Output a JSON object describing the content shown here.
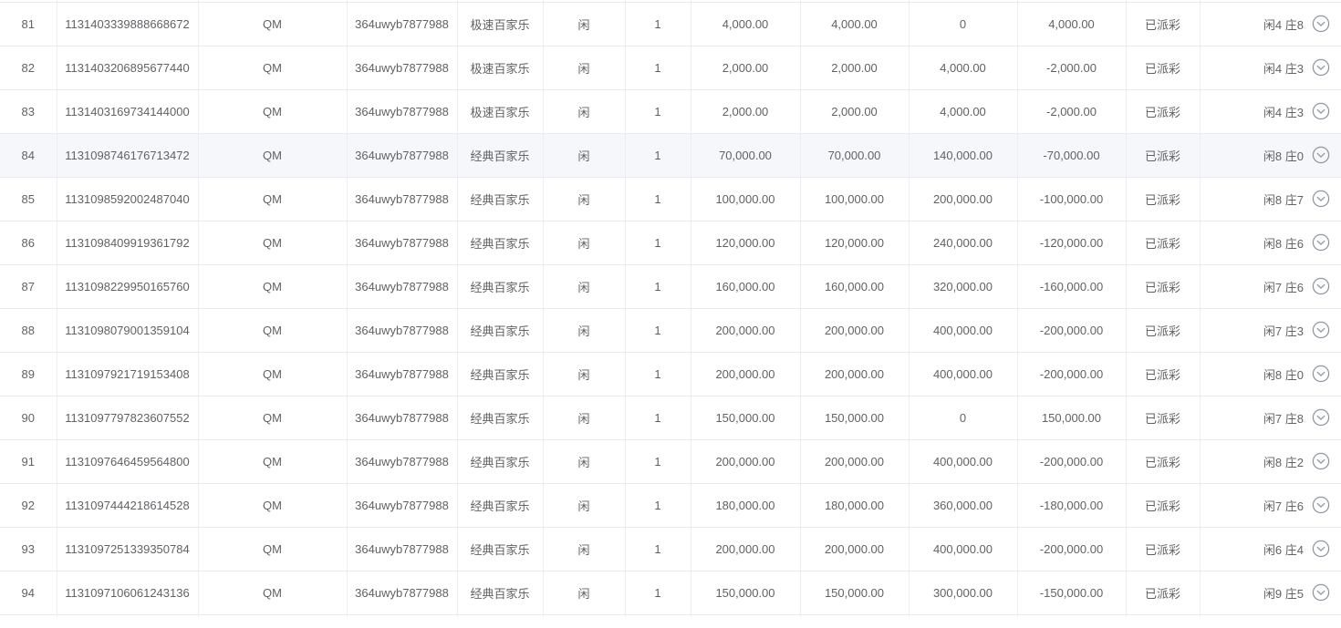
{
  "colors": {
    "text": "#606266",
    "positive": "#12a02c",
    "negative": "#fb2b2b",
    "border": "#e9ebf0",
    "highlight_row_bg": "#f5f7fa"
  },
  "icons": {
    "row_expand": "chevron-down-circle"
  },
  "table": {
    "rows": [
      {
        "num": "81",
        "order_id": "1131403339888668672",
        "agent": "QM",
        "account": "364uwyb7877988",
        "game": "极速百家乐",
        "bet": "闲",
        "count": "1",
        "amount": "4,000.00",
        "valid": "4,000.00",
        "turnover": "0",
        "win_loss": "4,000.00",
        "status": "已派彩",
        "result": "闲4 庄8",
        "highlighted": false
      },
      {
        "num": "82",
        "order_id": "1131403206895677440",
        "agent": "QM",
        "account": "364uwyb7877988",
        "game": "极速百家乐",
        "bet": "闲",
        "count": "1",
        "amount": "2,000.00",
        "valid": "2,000.00",
        "turnover": "4,000.00",
        "win_loss": "-2,000.00",
        "status": "已派彩",
        "result": "闲4 庄3",
        "highlighted": false
      },
      {
        "num": "83",
        "order_id": "1131403169734144000",
        "agent": "QM",
        "account": "364uwyb7877988",
        "game": "极速百家乐",
        "bet": "闲",
        "count": "1",
        "amount": "2,000.00",
        "valid": "2,000.00",
        "turnover": "4,000.00",
        "win_loss": "-2,000.00",
        "status": "已派彩",
        "result": "闲4 庄3",
        "highlighted": false
      },
      {
        "num": "84",
        "order_id": "1131098746176713472",
        "agent": "QM",
        "account": "364uwyb7877988",
        "game": "经典百家乐",
        "bet": "闲",
        "count": "1",
        "amount": "70,000.00",
        "valid": "70,000.00",
        "turnover": "140,000.00",
        "win_loss": "-70,000.00",
        "status": "已派彩",
        "result": "闲8 庄0",
        "highlighted": true
      },
      {
        "num": "85",
        "order_id": "1131098592002487040",
        "agent": "QM",
        "account": "364uwyb7877988",
        "game": "经典百家乐",
        "bet": "闲",
        "count": "1",
        "amount": "100,000.00",
        "valid": "100,000.00",
        "turnover": "200,000.00",
        "win_loss": "-100,000.00",
        "status": "已派彩",
        "result": "闲8 庄7",
        "highlighted": false
      },
      {
        "num": "86",
        "order_id": "1131098409919361792",
        "agent": "QM",
        "account": "364uwyb7877988",
        "game": "经典百家乐",
        "bet": "闲",
        "count": "1",
        "amount": "120,000.00",
        "valid": "120,000.00",
        "turnover": "240,000.00",
        "win_loss": "-120,000.00",
        "status": "已派彩",
        "result": "闲8 庄6",
        "highlighted": false
      },
      {
        "num": "87",
        "order_id": "1131098229950165760",
        "agent": "QM",
        "account": "364uwyb7877988",
        "game": "经典百家乐",
        "bet": "闲",
        "count": "1",
        "amount": "160,000.00",
        "valid": "160,000.00",
        "turnover": "320,000.00",
        "win_loss": "-160,000.00",
        "status": "已派彩",
        "result": "闲7 庄6",
        "highlighted": false
      },
      {
        "num": "88",
        "order_id": "1131098079001359104",
        "agent": "QM",
        "account": "364uwyb7877988",
        "game": "经典百家乐",
        "bet": "闲",
        "count": "1",
        "amount": "200,000.00",
        "valid": "200,000.00",
        "turnover": "400,000.00",
        "win_loss": "-200,000.00",
        "status": "已派彩",
        "result": "闲7 庄3",
        "highlighted": false
      },
      {
        "num": "89",
        "order_id": "1131097921719153408",
        "agent": "QM",
        "account": "364uwyb7877988",
        "game": "经典百家乐",
        "bet": "闲",
        "count": "1",
        "amount": "200,000.00",
        "valid": "200,000.00",
        "turnover": "400,000.00",
        "win_loss": "-200,000.00",
        "status": "已派彩",
        "result": "闲8 庄0",
        "highlighted": false
      },
      {
        "num": "90",
        "order_id": "1131097797823607552",
        "agent": "QM",
        "account": "364uwyb7877988",
        "game": "经典百家乐",
        "bet": "闲",
        "count": "1",
        "amount": "150,000.00",
        "valid": "150,000.00",
        "turnover": "0",
        "win_loss": "150,000.00",
        "status": "已派彩",
        "result": "闲7 庄8",
        "highlighted": false
      },
      {
        "num": "91",
        "order_id": "1131097646459564800",
        "agent": "QM",
        "account": "364uwyb7877988",
        "game": "经典百家乐",
        "bet": "闲",
        "count": "1",
        "amount": "200,000.00",
        "valid": "200,000.00",
        "turnover": "400,000.00",
        "win_loss": "-200,000.00",
        "status": "已派彩",
        "result": "闲8 庄2",
        "highlighted": false
      },
      {
        "num": "92",
        "order_id": "1131097444218614528",
        "agent": "QM",
        "account": "364uwyb7877988",
        "game": "经典百家乐",
        "bet": "闲",
        "count": "1",
        "amount": "180,000.00",
        "valid": "180,000.00",
        "turnover": "360,000.00",
        "win_loss": "-180,000.00",
        "status": "已派彩",
        "result": "闲7 庄6",
        "highlighted": false
      },
      {
        "num": "93",
        "order_id": "1131097251339350784",
        "agent": "QM",
        "account": "364uwyb7877988",
        "game": "经典百家乐",
        "bet": "闲",
        "count": "1",
        "amount": "200,000.00",
        "valid": "200,000.00",
        "turnover": "400,000.00",
        "win_loss": "-200,000.00",
        "status": "已派彩",
        "result": "闲6 庄4",
        "highlighted": false
      },
      {
        "num": "94",
        "order_id": "1131097106061243136",
        "agent": "QM",
        "account": "364uwyb7877988",
        "game": "经典百家乐",
        "bet": "闲",
        "count": "1",
        "amount": "150,000.00",
        "valid": "150,000.00",
        "turnover": "300,000.00",
        "win_loss": "-150,000.00",
        "status": "已派彩",
        "result": "闲9 庄5",
        "highlighted": false
      }
    ]
  }
}
